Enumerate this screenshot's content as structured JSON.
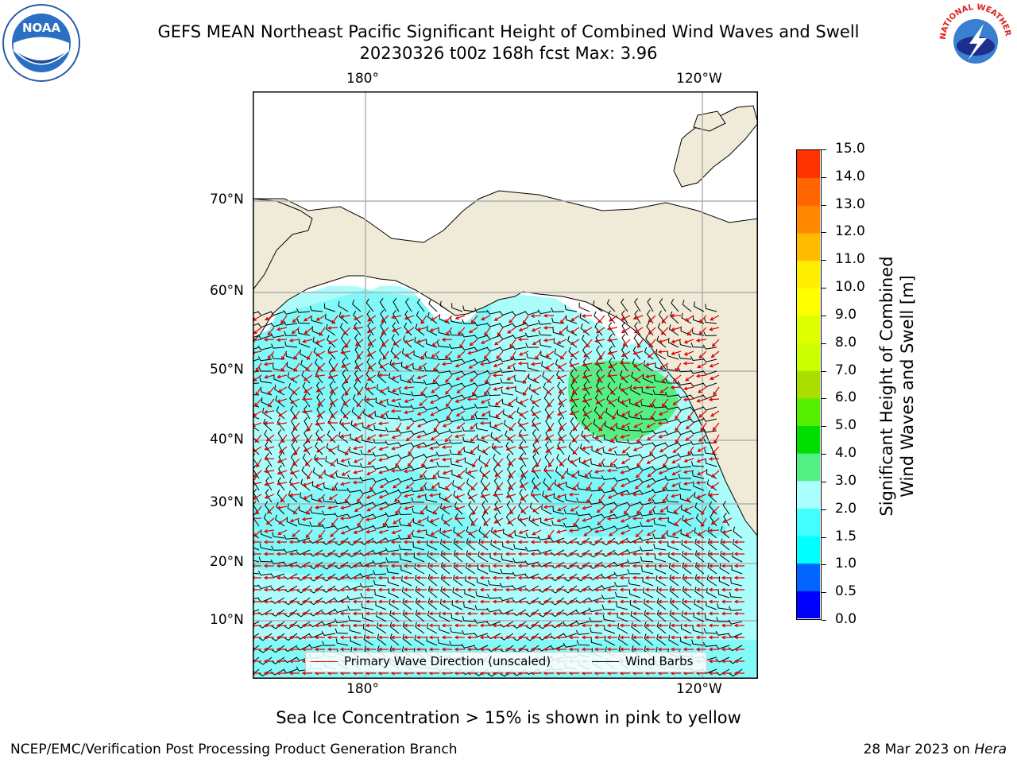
{
  "header": {
    "title_line1": "GEFS MEAN Northeast Pacific Significant Height of Combined Wind Waves and Swell",
    "title_line2": "20230326 t00z 168h fcst   Max: 3.96"
  },
  "logos": {
    "left": "NOAA",
    "right": "NATIONAL WEATHER SERVICE"
  },
  "map": {
    "top_lon_labels": [
      "180°",
      "120°W"
    ],
    "bottom_lon_labels": [
      "180°",
      "120°W"
    ],
    "lat_labels": [
      "70°N",
      "60°N",
      "50°N",
      "40°N",
      "30°N",
      "20°N",
      "10°N"
    ],
    "colors": {
      "land": "#efebd8",
      "ocean": "#a8fdf9",
      "swell": "#5cf0f0",
      "high": "#55ee88",
      "border": "#000000"
    }
  },
  "legend": {
    "wave_label": "Primary Wave Direction (unscaled)",
    "wind_label": "Wind Barbs",
    "wave_color": "#e00000",
    "wind_color": "#000000"
  },
  "colorbar": {
    "label_line1": "Significant Height of Combined",
    "label_line2": "Wind Waves and Swell [m]",
    "ticks": [
      "15.0",
      "14.0",
      "13.0",
      "12.0",
      "11.0",
      "10.0",
      "9.0",
      "8.0",
      "7.0",
      "6.0",
      "5.0",
      "4.0",
      "3.0",
      "2.0",
      "1.5",
      "1.0",
      "0.5",
      "0.0"
    ],
    "colors": [
      "#0000ff",
      "#0066ff",
      "#00ffff",
      "#44ffff",
      "#aaffff",
      "#55f085",
      "#00dd00",
      "#55ee00",
      "#aadd00",
      "#ccff00",
      "#ddff00",
      "#ffff00",
      "#ffee00",
      "#ffbb00",
      "#ff8800",
      "#ff6600",
      "#ff3300",
      "#ff0000"
    ]
  },
  "footer": {
    "note": "Sea Ice Concentration > 15% is shown in pink to yellow",
    "left": "NCEP/EMC/Verification Post Processing Product Generation Branch",
    "right_date": "28 Mar 2023 on ",
    "right_host": "Hera"
  }
}
